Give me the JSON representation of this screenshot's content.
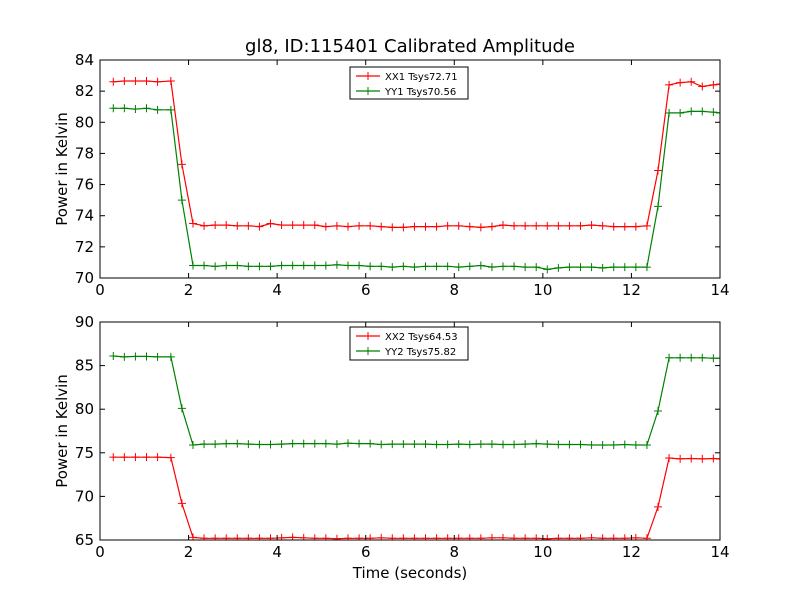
{
  "title": "gl8, ID:115401 Calibrated Amplitude",
  "chart_data": [
    {
      "type": "line",
      "ylabel": "Power in Kelvin",
      "xlabel": "",
      "xlim": [
        0,
        14
      ],
      "ylim": [
        70,
        84
      ],
      "xticks": [
        "0",
        "2",
        "4",
        "6",
        "8",
        "10",
        "12",
        "14"
      ],
      "yticks": [
        "70",
        "72",
        "74",
        "76",
        "78",
        "80",
        "82",
        "84"
      ],
      "legend_position": "upper-center",
      "x": [
        0.3,
        0.55,
        0.8,
        1.05,
        1.3,
        1.6,
        1.85,
        2.1,
        2.35,
        2.6,
        2.85,
        3.1,
        3.35,
        3.6,
        3.85,
        4.1,
        4.35,
        4.6,
        4.85,
        5.1,
        5.35,
        5.6,
        5.85,
        6.1,
        6.35,
        6.6,
        6.85,
        7.1,
        7.35,
        7.6,
        7.85,
        8.1,
        8.35,
        8.6,
        8.85,
        9.1,
        9.35,
        9.6,
        9.85,
        10.1,
        10.35,
        10.6,
        10.85,
        11.1,
        11.35,
        11.6,
        11.85,
        12.1,
        12.35,
        12.6,
        12.85,
        13.1,
        13.35,
        13.6,
        13.85,
        14.0
      ],
      "series": [
        {
          "name": "XX1 Tsys72.71",
          "color": "#ff0000",
          "values": [
            82.6,
            82.65,
            82.65,
            82.65,
            82.6,
            82.65,
            77.3,
            73.5,
            73.35,
            73.4,
            73.4,
            73.35,
            73.35,
            73.3,
            73.5,
            73.4,
            73.4,
            73.4,
            73.4,
            73.3,
            73.35,
            73.3,
            73.35,
            73.35,
            73.3,
            73.25,
            73.25,
            73.3,
            73.3,
            73.3,
            73.35,
            73.35,
            73.3,
            73.25,
            73.3,
            73.4,
            73.35,
            73.35,
            73.35,
            73.35,
            73.35,
            73.35,
            73.35,
            73.4,
            73.35,
            73.3,
            73.3,
            73.3,
            73.35,
            76.9,
            82.4,
            82.55,
            82.6,
            82.3,
            82.4,
            82.45
          ]
        },
        {
          "name": "YY1 Tsys70.56",
          "color": "#008000",
          "values": [
            80.9,
            80.9,
            80.85,
            80.9,
            80.8,
            80.8,
            75.0,
            70.8,
            70.8,
            70.75,
            70.8,
            70.8,
            70.75,
            70.75,
            70.75,
            70.8,
            70.8,
            70.8,
            70.8,
            70.8,
            70.85,
            70.8,
            70.8,
            70.75,
            70.75,
            70.7,
            70.75,
            70.7,
            70.75,
            70.75,
            70.75,
            70.7,
            70.75,
            70.8,
            70.7,
            70.75,
            70.75,
            70.7,
            70.7,
            70.55,
            70.65,
            70.7,
            70.7,
            70.7,
            70.65,
            70.7,
            70.7,
            70.7,
            70.7,
            74.6,
            80.6,
            80.6,
            80.7,
            80.7,
            80.65,
            80.6
          ]
        }
      ]
    },
    {
      "type": "line",
      "ylabel": "Power in Kelvin",
      "xlabel": "Time (seconds)",
      "xlim": [
        0,
        14
      ],
      "ylim": [
        65,
        90
      ],
      "xticks": [
        "0",
        "2",
        "4",
        "6",
        "8",
        "10",
        "12",
        "14"
      ],
      "yticks": [
        "65",
        "70",
        "75",
        "80",
        "85",
        "90"
      ],
      "legend_position": "upper-center",
      "x": [
        0.3,
        0.55,
        0.8,
        1.05,
        1.3,
        1.6,
        1.85,
        2.1,
        2.35,
        2.6,
        2.85,
        3.1,
        3.35,
        3.6,
        3.85,
        4.1,
        4.35,
        4.6,
        4.85,
        5.1,
        5.35,
        5.6,
        5.85,
        6.1,
        6.35,
        6.6,
        6.85,
        7.1,
        7.35,
        7.6,
        7.85,
        8.1,
        8.35,
        8.6,
        8.85,
        9.1,
        9.35,
        9.6,
        9.85,
        10.1,
        10.35,
        10.6,
        10.85,
        11.1,
        11.35,
        11.6,
        11.85,
        12.1,
        12.35,
        12.6,
        12.85,
        13.1,
        13.35,
        13.6,
        13.85,
        14.0
      ],
      "series": [
        {
          "name": "XX2 Tsys64.53",
          "color": "#ff0000",
          "values": [
            74.5,
            74.5,
            74.5,
            74.5,
            74.5,
            74.45,
            69.2,
            65.3,
            65.2,
            65.2,
            65.2,
            65.2,
            65.2,
            65.2,
            65.2,
            65.25,
            65.3,
            65.25,
            65.2,
            65.2,
            65.15,
            65.2,
            65.2,
            65.2,
            65.25,
            65.2,
            65.2,
            65.2,
            65.2,
            65.2,
            65.2,
            65.2,
            65.2,
            65.2,
            65.25,
            65.25,
            65.2,
            65.2,
            65.2,
            65.15,
            65.2,
            65.2,
            65.2,
            65.25,
            65.2,
            65.2,
            65.2,
            65.25,
            65.2,
            68.8,
            74.4,
            74.3,
            74.35,
            74.3,
            74.35,
            74.3
          ]
        },
        {
          "name": "YY2 Tsys75.82",
          "color": "#008000",
          "values": [
            86.1,
            86.0,
            86.05,
            86.05,
            86.0,
            86.0,
            80.1,
            75.9,
            76.0,
            76.0,
            76.05,
            76.05,
            76.0,
            75.95,
            75.95,
            76.0,
            76.05,
            76.05,
            76.05,
            76.05,
            76.0,
            76.1,
            76.05,
            76.05,
            75.95,
            76.0,
            76.0,
            76.0,
            76.0,
            75.95,
            75.95,
            76.0,
            75.95,
            76.0,
            76.0,
            75.95,
            75.95,
            76.0,
            76.05,
            76.0,
            75.95,
            75.95,
            75.95,
            75.9,
            75.9,
            75.9,
            75.95,
            75.9,
            75.9,
            79.8,
            85.9,
            85.9,
            85.9,
            85.9,
            85.85,
            85.85
          ]
        }
      ]
    }
  ]
}
